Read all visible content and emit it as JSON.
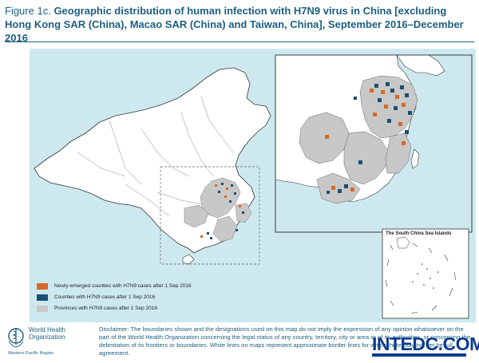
{
  "header": {
    "figure_label": "Figure 1c.",
    "title": "Geographic distribution of human infection with H7N9 virus in China [excluding Hong Kong SAR (China), Macao SAR (China) and Taiwan, China], September 2016–December 2016"
  },
  "legend": {
    "items": [
      {
        "label": "Newly emerged counties with H7N9 cases after 1 Sep 2016",
        "color": "#d66a2a"
      },
      {
        "label": "Counties with H7N9 cases after 1 Sep 2016",
        "color": "#1c4f72"
      },
      {
        "label": "Provinces with H7N9 cases after 1 Sep 2016",
        "color": "#c8c8c8"
      }
    ]
  },
  "inset": {
    "label": "The South China Sea Islands"
  },
  "footer": {
    "org_name": "World Health Organization",
    "region": "Western Pacific Region",
    "disclaimer": "Disclaimer: The boundaries shown and the designations used on this map do not imply the expression of any opinion whatsoever on the part of the World Health Organization concerning the legal status of any country, territory, city or area or of its authorities, or concerning the delimitation of its frontiers or boundaries. White lines on maps represent approximate border lines for which there may not yet be full agreement."
  },
  "watermark": {
    "text": "INTEDC.COM"
  },
  "colors": {
    "title": "#1c5f82",
    "sea": "#cde9ef",
    "land": "#ffffff",
    "affected_province": "#c8c8c8",
    "new_county": "#d66a2a",
    "existing_county": "#1c4f72"
  }
}
